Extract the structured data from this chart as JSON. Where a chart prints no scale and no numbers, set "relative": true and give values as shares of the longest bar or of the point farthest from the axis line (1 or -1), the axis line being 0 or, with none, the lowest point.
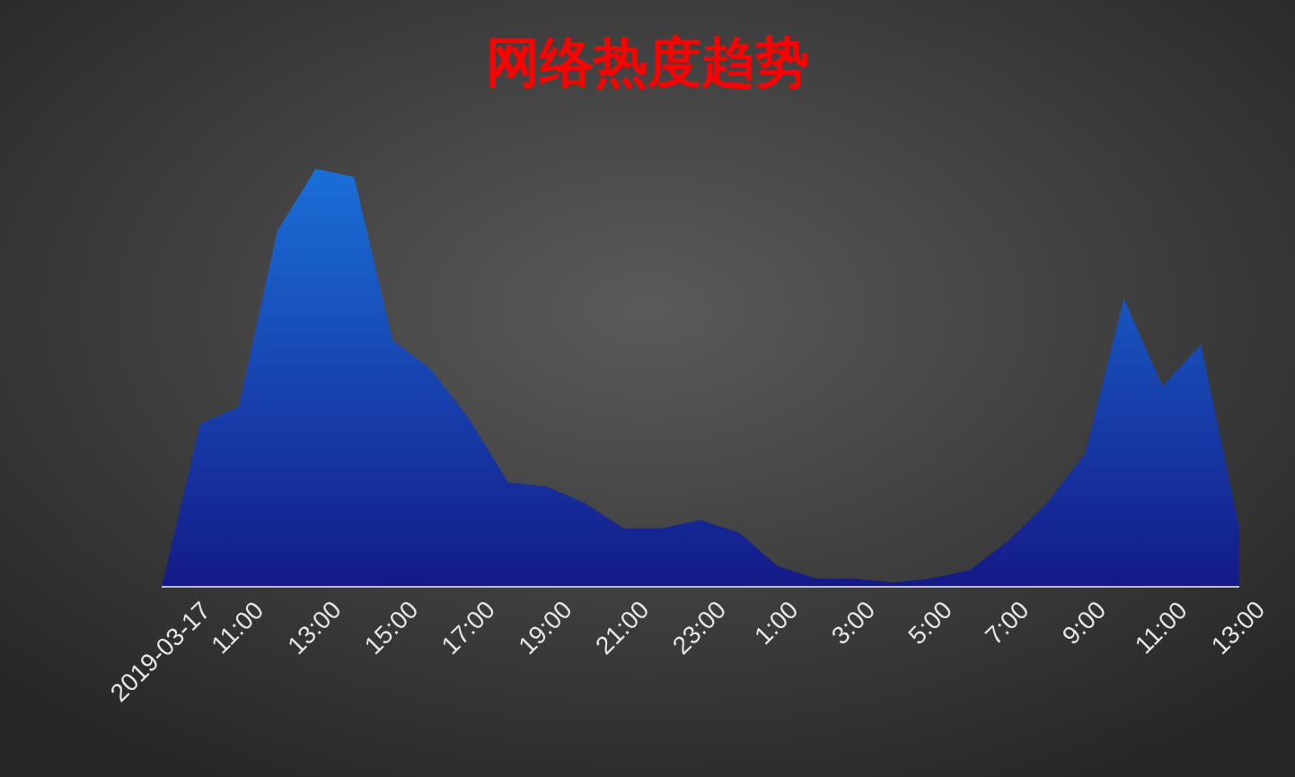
{
  "chart_data": {
    "type": "area",
    "title": "网络热度趋势",
    "relative": true,
    "categories": [
      "2019-03-17",
      null,
      "11:00",
      null,
      "13:00",
      null,
      "15:00",
      null,
      "17:00",
      null,
      "19:00",
      null,
      "21:00",
      null,
      "23:00",
      null,
      "1:00",
      null,
      "3:00",
      null,
      "5:00",
      null,
      "7:00",
      null,
      "9:00",
      null,
      "11:00",
      null,
      "13:00"
    ],
    "series": [
      {
        "color": "#1a6fd8",
        "values": [
          0,
          0.39,
          0.43,
          0.85,
          1,
          0.98,
          0.59,
          0.52,
          0.4,
          0.25,
          0.24,
          0.2,
          0.14,
          0.14,
          0.16,
          0.13,
          0.05,
          0.02,
          0.02,
          0.01,
          0.02,
          0.04,
          0.11,
          0.2,
          0.32,
          0.69,
          0.48,
          0.58,
          0.14
        ]
      }
    ]
  }
}
